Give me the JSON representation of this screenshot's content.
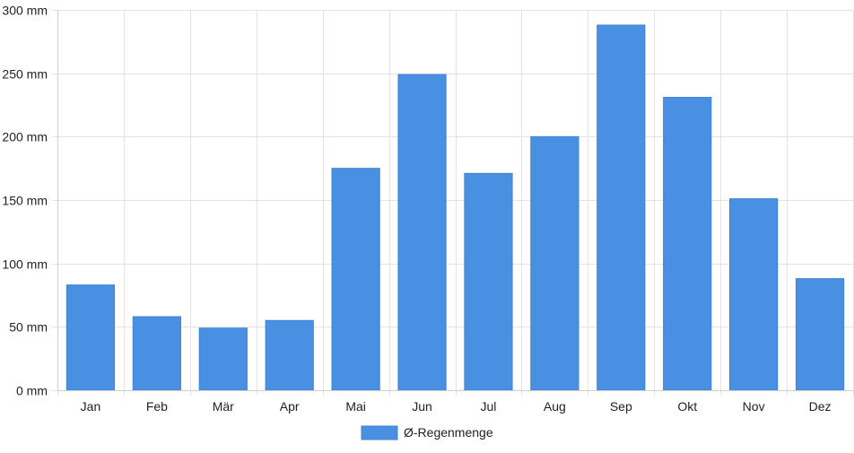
{
  "chart_data": {
    "type": "bar",
    "title": "",
    "xlabel": "",
    "ylabel": "",
    "unit_suffix": " mm",
    "categories": [
      "Jan",
      "Feb",
      "Mär",
      "Apr",
      "Mai",
      "Jun",
      "Jul",
      "Aug",
      "Sep",
      "Okt",
      "Nov",
      "Dez"
    ],
    "series": [
      {
        "name": "Ø-Regenmenge",
        "color": "#4a90e2",
        "values": [
          83,
          58,
          49,
          55,
          175,
          249,
          171,
          200,
          288,
          231,
          151,
          88
        ]
      }
    ],
    "ylim": [
      0,
      300
    ],
    "y_ticks": [
      0,
      50,
      100,
      150,
      200,
      250,
      300
    ],
    "y_tick_labels": [
      "0 mm",
      "50 mm",
      "100 mm",
      "150 mm",
      "200 mm",
      "250 mm",
      "300 mm"
    ],
    "grid": true,
    "legend_position": "bottom-center"
  }
}
